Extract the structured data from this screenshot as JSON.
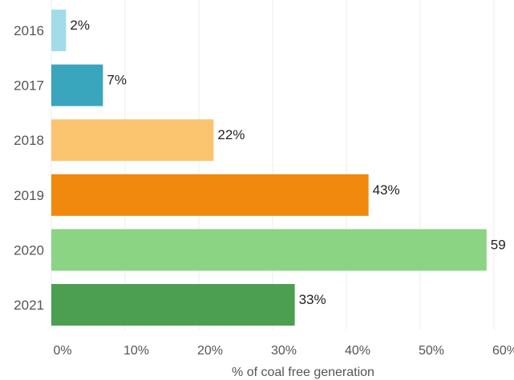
{
  "chart_data": {
    "type": "bar",
    "orientation": "horizontal",
    "categories": [
      "2016",
      "2017",
      "2018",
      "2019",
      "2020",
      "2021"
    ],
    "values": [
      2,
      7,
      22,
      43,
      59,
      33
    ],
    "value_labels": [
      "2%",
      "7%",
      "22%",
      "43%",
      "59",
      "33%"
    ],
    "colors": [
      "#a3dce8",
      "#3aa6bd",
      "#fbc46f",
      "#f0890d",
      "#8bd484",
      "#4c9f50"
    ],
    "title": "",
    "xlabel": "% of coal free generation",
    "ylabel": "",
    "xlim": [
      0,
      60
    ],
    "x_ticks": [
      0,
      10,
      20,
      30,
      40,
      50,
      60
    ],
    "x_tick_labels": [
      "0%",
      "10%",
      "20%",
      "30%",
      "40%",
      "50%",
      "60%"
    ],
    "grid": "vertical"
  }
}
